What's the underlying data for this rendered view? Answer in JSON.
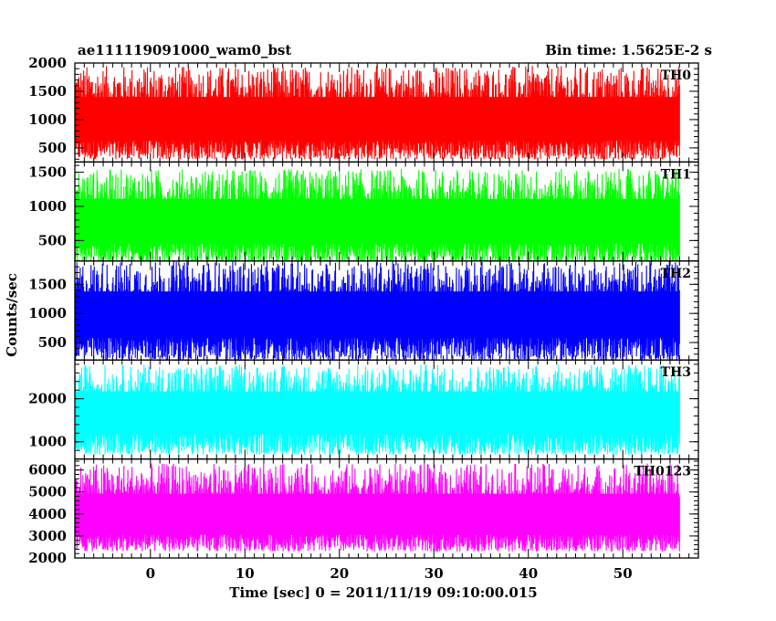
{
  "title_left": "ae111119091000_wam0_bst",
  "title_right": "Bin time: 1.5625E-2 s",
  "chart_data": {
    "type": "line",
    "xlabel": "Time [sec] 0 = 2011/11/19 09:10:00.015",
    "ylabel": "Counts/sec",
    "xlim": [
      -8,
      58
    ],
    "xticks": [
      0,
      10,
      20,
      30,
      40,
      50
    ],
    "x_range_data": [
      -8,
      56
    ],
    "bin_time": 0.015625,
    "panels": [
      {
        "name": "TH0",
        "color": "#ff0000",
        "ylim": [
          250,
          2000
        ],
        "yticks": [
          500,
          1000,
          1500,
          2000
        ],
        "base": 300,
        "mean": 950,
        "peak": 1950
      },
      {
        "name": "TH1",
        "color": "#00ff00",
        "ylim": [
          200,
          1650
        ],
        "yticks": [
          500,
          1000,
          1500
        ],
        "base": 150,
        "mean": 750,
        "peak": 1550
      },
      {
        "name": "TH2",
        "color": "#0000ff",
        "ylim": [
          200,
          1900
        ],
        "yticks": [
          500,
          1000,
          1500
        ],
        "base": 200,
        "mean": 950,
        "peak": 1900
      },
      {
        "name": "TH3",
        "color": "#00ffff",
        "ylim": [
          600,
          2900
        ],
        "yticks": [
          1000,
          2000
        ],
        "base": 700,
        "mean": 1650,
        "peak": 2800
      },
      {
        "name": "TH0123",
        "color": "#ff00ff",
        "ylim": [
          2000,
          6500
        ],
        "yticks": [
          2000,
          3000,
          4000,
          5000,
          6000
        ],
        "base": 2300,
        "mean": 3800,
        "peak": 6300
      }
    ]
  }
}
